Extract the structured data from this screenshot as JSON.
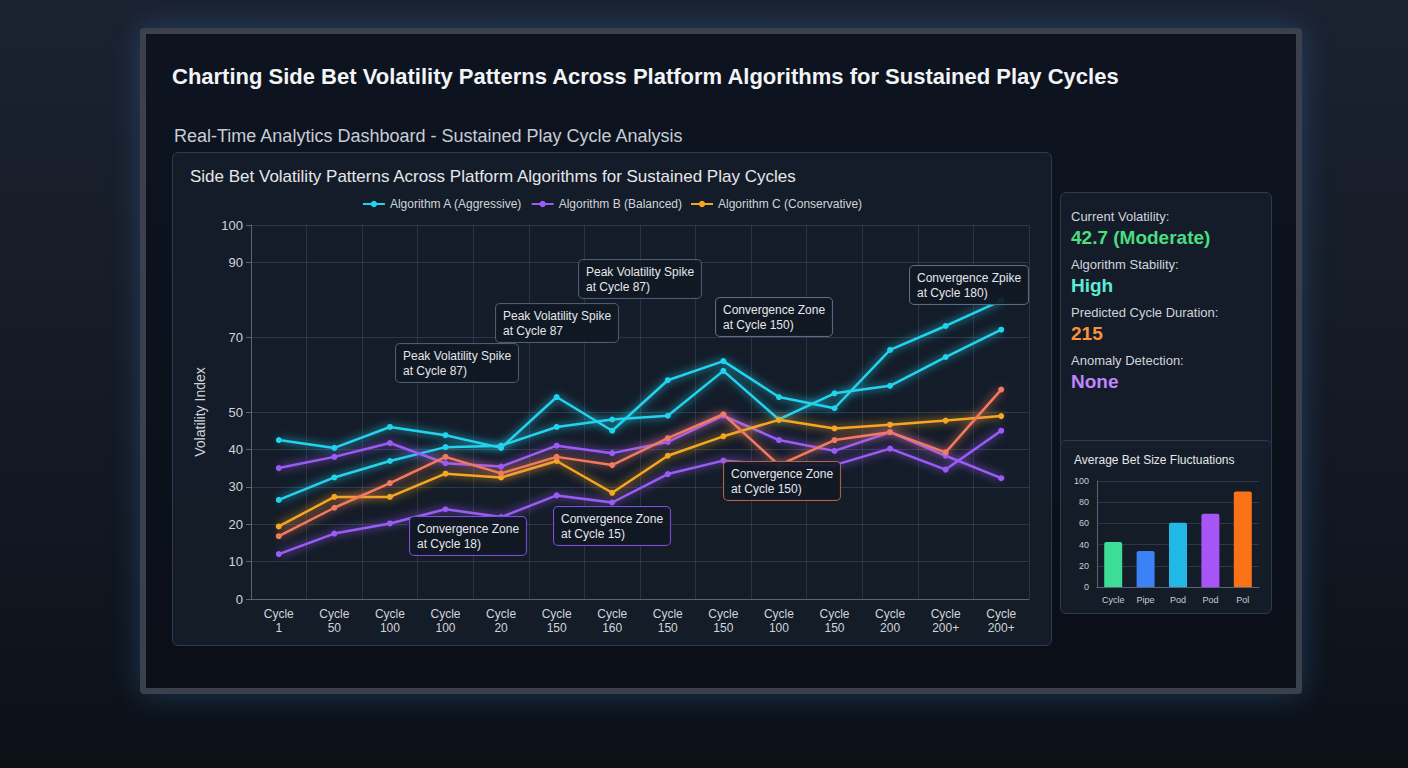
{
  "header": {
    "title": "Charting Side Bet Volatility Patterns Across Platform Algorithms for Sustained Play Cycles",
    "subtitle": "Real-Time Analytics Dashboard - Sustained Play Cycle Analysis"
  },
  "chart_data": [
    {
      "type": "line",
      "title": "Side Bet Volatility Patterns Across Platform Algorithms for Sustained Play Cycles",
      "y_label": "Volatility Index",
      "categories": [
        "Cycle 1",
        "Cycle 50",
        "Cycle 100",
        "Cycle 100",
        "Cycle 20",
        "Cycle 150",
        "Cycle 160",
        "Cycle 150",
        "Cycle 150",
        "Cycle 100",
        "Cycle 150",
        "Cycle 200",
        "Cycle 200+",
        "Cycle 200+"
      ],
      "series": [
        {
          "name": "Algorithm A (Aggressive)",
          "color": "#22d3ee",
          "values": [
            42.5,
            40.4,
            46,
            43.8,
            40.4,
            54,
            45,
            58.5,
            63.6,
            54,
            51,
            66.6,
            73,
            79.8
          ]
        },
        {
          "name": "Algorithm A (Aggressive)",
          "color": "#22d3ee",
          "values": [
            26.5,
            32.5,
            36.9,
            40.6,
            41,
            46,
            48,
            49,
            61,
            48,
            55,
            57,
            64.7,
            72
          ]
        },
        {
          "name": "Algorithm B (Balanced)",
          "color": "#9b5cf6",
          "values": [
            35,
            38,
            41.7,
            36.3,
            35.4,
            41,
            39,
            42,
            49,
            42.5,
            39.6,
            44.6,
            38.3,
            32.3
          ]
        },
        {
          "name": "Algorithm B (Balanced)",
          "color": "#9b5cf6",
          "values": [
            12,
            17.5,
            20.2,
            24,
            21.9,
            27.7,
            25.8,
            33.4,
            37,
            35.8,
            35.8,
            40.2,
            34.6,
            45
          ]
        },
        {
          "name": "Algorithm C (Conservative)",
          "color": "#f5a623",
          "values": [
            19.4,
            27.3,
            27.3,
            33.5,
            32.5,
            36.9,
            28.4,
            38.3,
            43.5,
            47.9,
            45.6,
            46.6,
            47.7,
            48.9
          ]
        },
        {
          "name": "Algorithm C (Conservative)",
          "color": "#f27a5e",
          "values": [
            16.8,
            24.4,
            31,
            38,
            33.6,
            38,
            35.8,
            43,
            49.4,
            35.8,
            42.5,
            44.6,
            39.2,
            56
          ]
        }
      ],
      "ylim": [
        0,
        100
      ],
      "yticks": [
        0,
        10,
        20,
        30,
        40,
        50,
        70,
        90,
        100
      ],
      "grid": true,
      "legend": "top",
      "marker": "circle",
      "data_labels": false,
      "annotations": [
        "Peak Volatility Spike at Cycle 87)",
        "Peak Volatility Spike at Cycle 87",
        "Peak Volatility Spike at Cycle 87)",
        "Convergence Zone at Cycle 150)",
        "Convergence Zpike at Cycle 180)",
        "Convergence Zone at Cycle 150)",
        "Convergence Zone at Cycle 15)",
        "Convergence Zone at Cycle 18)"
      ]
    },
    {
      "type": "bar",
      "title": "Average Bet Size Fluctuations",
      "categories": [
        "Cycle",
        "Pipe",
        "Pod",
        "Pod",
        "Pol"
      ],
      "values": [
        42.5,
        34,
        60.6,
        69,
        90
      ],
      "colors": [
        "#3ddc97",
        "#3b82f6",
        "#22b8e6",
        "#a855f7",
        "#f97316"
      ],
      "ylim": [
        0,
        100
      ],
      "yticks": [
        0,
        20,
        40,
        60,
        80,
        100
      ],
      "grid": true
    }
  ],
  "status_panel": [
    {
      "label": "Current Volatility:",
      "value": "42.7 (Moderate)",
      "color": "#4ade80"
    },
    {
      "label": "Algorithm Stability:",
      "value": "High",
      "color": "#5eead4"
    },
    {
      "label": "Predicted Cycle Duration:",
      "value": 215,
      "color": "#fb923c"
    },
    {
      "label": "Anomaly Detection:",
      "value": "None",
      "color": "#c084fc"
    }
  ]
}
